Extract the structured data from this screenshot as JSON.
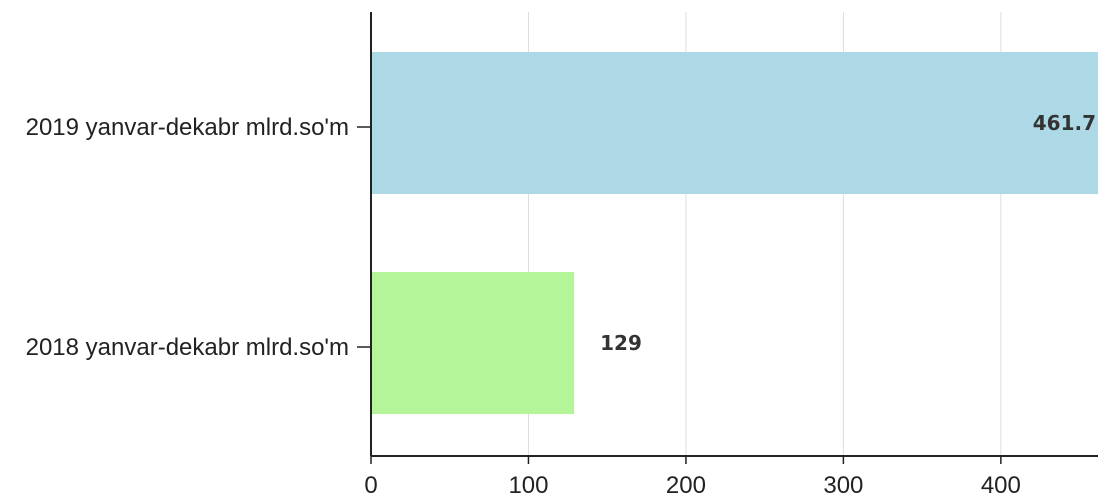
{
  "chart_data": {
    "type": "bar",
    "orientation": "horizontal",
    "categories": [
      "2019 yanvar-dekabr mlrd.so'm",
      "2018 yanvar-dekabr mlrd.so'm"
    ],
    "values": [
      461.7,
      129
    ],
    "value_labels": [
      "461.7",
      "129"
    ],
    "bar_colors": [
      "#add8e6",
      "#b5f599"
    ],
    "x_ticks": [
      "0",
      "100",
      "200",
      "300",
      "400"
    ],
    "xlim": [
      0,
      461.7
    ],
    "grid": true,
    "title": "",
    "xlabel": "",
    "ylabel": ""
  }
}
